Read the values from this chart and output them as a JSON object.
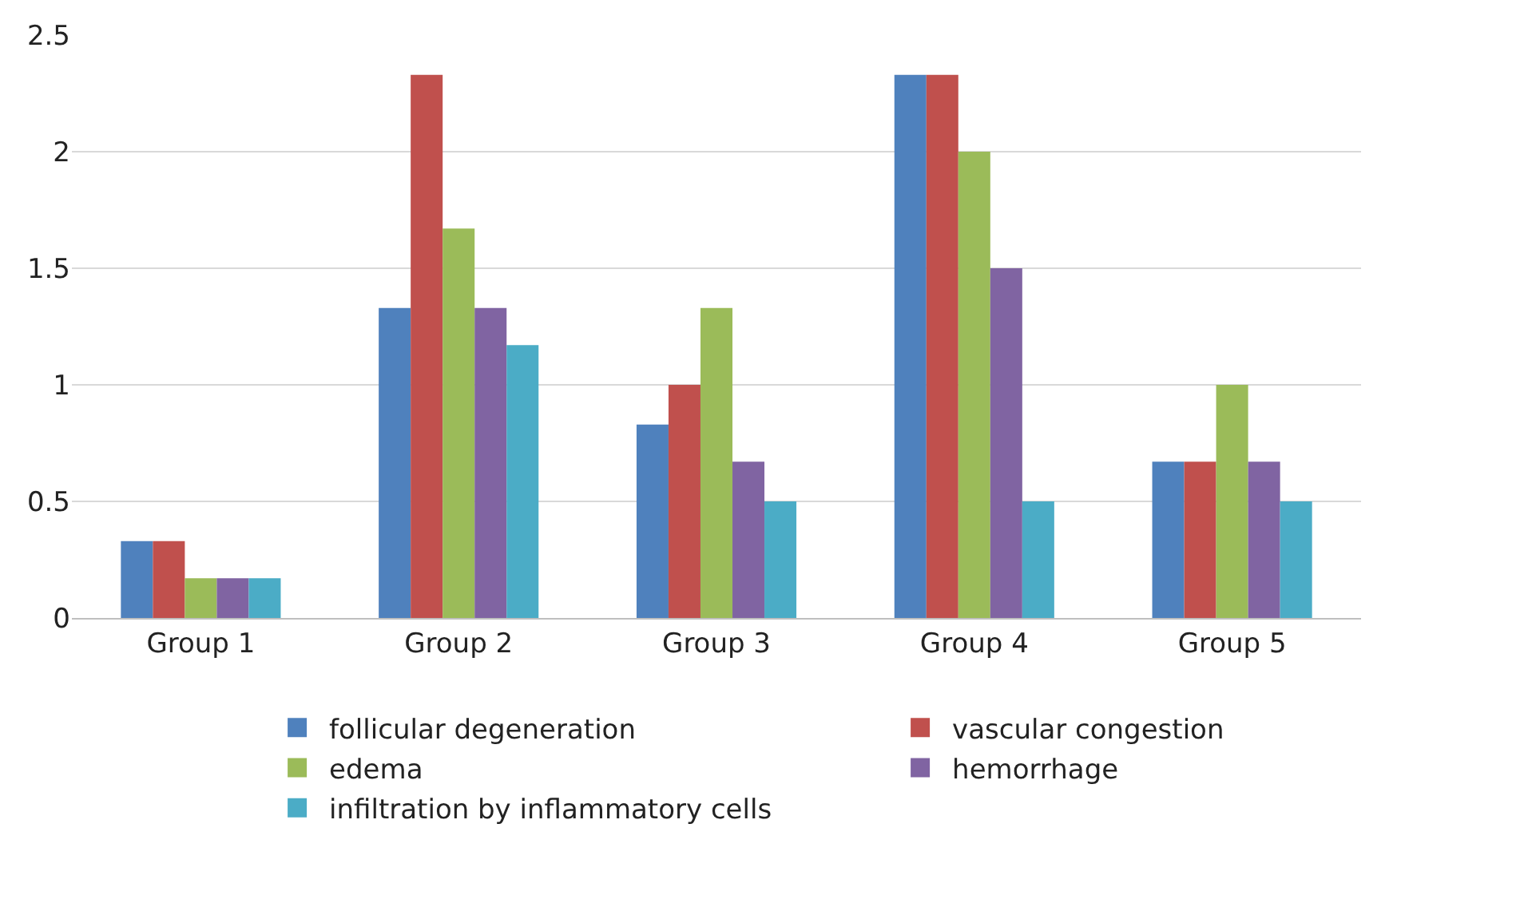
{
  "chart_data": {
    "type": "bar",
    "categories": [
      "Group 1",
      "Group 2",
      "Group 3",
      "Group 4",
      "Group 5"
    ],
    "series": [
      {
        "name": "follicular degeneration",
        "color": "#4f81bd",
        "values": [
          0.33,
          1.33,
          0.83,
          2.33,
          0.67
        ]
      },
      {
        "name": "vascular congestion",
        "color": "#c0504d",
        "values": [
          0.33,
          2.33,
          1.0,
          2.33,
          0.67
        ]
      },
      {
        "name": "edema",
        "color": "#9bbb59",
        "values": [
          0.17,
          1.67,
          1.33,
          2.0,
          1.0
        ]
      },
      {
        "name": "hemorrhage",
        "color": "#8064a2",
        "values": [
          0.17,
          1.33,
          0.67,
          1.5,
          0.67
        ]
      },
      {
        "name": "infiltration by inflammatory cells",
        "color": "#4bacc6",
        "values": [
          0.17,
          1.17,
          0.5,
          0.5,
          0.5
        ]
      }
    ],
    "ylim": [
      0,
      2.5
    ],
    "yticks": [
      0,
      0.5,
      1,
      1.5,
      2,
      2.5
    ],
    "grid": "y",
    "legend": "bottom"
  }
}
